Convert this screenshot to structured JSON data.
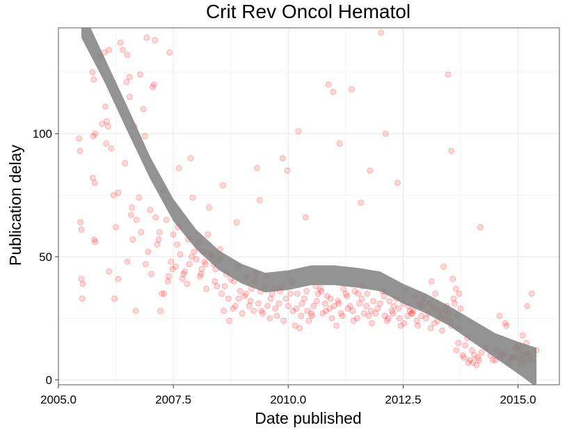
{
  "chart_data": {
    "type": "scatter",
    "title": "Crit Rev Oncol Hematol",
    "xlabel": "Date published",
    "ylabel": "Publication delay",
    "xlim": [
      2005.0,
      2015.9
    ],
    "ylim": [
      -2,
      143
    ],
    "x_ticks": [
      2005.0,
      2007.5,
      2010.0,
      2012.5,
      2015.0
    ],
    "x_tick_labels": [
      "2005.0",
      "2007.5",
      "2010.0",
      "2012.5",
      "2015.0"
    ],
    "y_ticks": [
      0,
      50,
      100
    ],
    "y_tick_labels": [
      "0",
      "50",
      "100"
    ],
    "grid": true,
    "point_color": "#ff0000",
    "smooth_color": "#808080",
    "smooth_curve": {
      "x": [
        2005.5,
        2006.0,
        2006.5,
        2007.0,
        2007.5,
        2008.0,
        2008.5,
        2009.0,
        2009.5,
        2010.0,
        2010.5,
        2011.0,
        2011.5,
        2012.0,
        2012.5,
        2013.0,
        2013.5,
        2014.0,
        2014.5,
        2015.0,
        2015.4
      ],
      "y": [
        145,
        126,
        106,
        86,
        69,
        57,
        48.5,
        43,
        39.5,
        40.5,
        42.5,
        42.5,
        41.5,
        40,
        35,
        31,
        26,
        20,
        14,
        9,
        5
      ],
      "band_halfwidth": [
        6,
        5,
        5,
        4.5,
        4.5,
        4,
        4,
        4,
        4,
        4,
        4,
        4,
        4,
        4,
        4,
        4,
        4,
        4.5,
        5,
        6.5,
        8
      ]
    },
    "points": {
      "x": [
        2005.45,
        2005.48,
        2005.5,
        2005.52,
        2005.47,
        2005.5,
        2005.53,
        2005.75,
        2005.78,
        2005.8,
        2005.74,
        2005.77,
        2005.79,
        2005.76,
        2005.8,
        2006.0,
        2006.05,
        2006.1,
        2006.02,
        2006.08,
        2006.1,
        2006.04,
        2006.2,
        2006.25,
        2006.3,
        2006.22,
        2006.3,
        2006.45,
        2006.5,
        2006.55,
        2006.6,
        2006.5,
        2006.55,
        2006.62,
        2006.48,
        2006.58,
        2006.7,
        2006.75,
        2006.8,
        2006.85,
        2006.9,
        2006.95,
        2006.88,
        2006.78,
        2007.0,
        2007.05,
        2007.1,
        2007.15,
        2007.2,
        2007.25,
        2007.02,
        2007.12,
        2007.18,
        2007.22,
        2007.3,
        2007.35,
        2007.4,
        2007.45,
        2007.5,
        2007.55,
        2007.6,
        2007.65,
        2007.38,
        2007.48,
        2007.58,
        2007.7,
        2007.75,
        2007.8,
        2007.85,
        2007.9,
        2007.95,
        2007.72,
        2007.82,
        2007.92,
        2008.0,
        2008.05,
        2008.1,
        2008.15,
        2008.2,
        2008.25,
        2008.3,
        2008.08,
        2008.18,
        2008.12,
        2008.22,
        2008.35,
        2008.4,
        2008.45,
        2008.5,
        2008.55,
        2008.6,
        2008.65,
        2008.42,
        2008.52,
        2008.62,
        2008.7,
        2008.75,
        2008.8,
        2008.85,
        2008.9,
        2008.95,
        2008.72,
        2008.82,
        2008.92,
        2009.0,
        2009.05,
        2009.1,
        2009.15,
        2009.2,
        2009.25,
        2009.3,
        2009.08,
        2009.18,
        2009.28,
        2009.35,
        2009.4,
        2009.45,
        2009.5,
        2009.55,
        2009.6,
        2009.65,
        2009.42,
        2009.52,
        2009.62,
        2009.7,
        2009.75,
        2009.8,
        2009.85,
        2009.9,
        2009.95,
        2009.72,
        2009.82,
        2010.0,
        2010.05,
        2010.1,
        2010.15,
        2010.2,
        2010.25,
        2010.3,
        2010.08,
        2010.18,
        2010.28,
        2010.35,
        2010.4,
        2010.45,
        2010.5,
        2010.55,
        2010.6,
        2010.65,
        2010.42,
        2010.52,
        2010.62,
        2010.7,
        2010.75,
        2010.8,
        2010.85,
        2010.9,
        2010.95,
        2010.72,
        2010.82,
        2010.92,
        2011.0,
        2011.05,
        2011.1,
        2011.15,
        2011.2,
        2011.25,
        2011.3,
        2011.08,
        2011.18,
        2011.28,
        2011.35,
        2011.4,
        2011.45,
        2011.5,
        2011.55,
        2011.6,
        2011.65,
        2011.42,
        2011.52,
        2011.62,
        2011.7,
        2011.75,
        2011.8,
        2011.85,
        2011.9,
        2011.95,
        2011.72,
        2011.82,
        2012.0,
        2012.05,
        2012.1,
        2012.15,
        2012.2,
        2012.25,
        2012.3,
        2012.08,
        2012.18,
        2012.28,
        2012.35,
        2012.4,
        2012.45,
        2012.5,
        2012.55,
        2012.6,
        2012.65,
        2012.42,
        2012.52,
        2012.62,
        2012.7,
        2012.75,
        2012.8,
        2012.85,
        2012.9,
        2012.95,
        2012.72,
        2012.82,
        2012.92,
        2013.0,
        2013.05,
        2013.1,
        2013.15,
        2013.2,
        2013.25,
        2013.3,
        2013.08,
        2013.18,
        2013.28,
        2013.35,
        2013.4,
        2013.45,
        2013.5,
        2013.55,
        2013.6,
        2013.65,
        2013.42,
        2013.52,
        2013.62,
        2013.7,
        2013.72,
        2013.75,
        2013.68,
        2013.7,
        2013.66,
        2013.8,
        2013.85,
        2013.9,
        2013.95,
        2013.82,
        2013.92,
        2014.0,
        2014.05,
        2014.1,
        2014.15,
        2014.2,
        2014.02,
        2014.12,
        2014.3,
        2014.4,
        2014.5,
        2014.6,
        2014.7,
        2014.45,
        2014.55,
        2014.65,
        2014.8,
        2014.9,
        2015.0,
        2015.05,
        2015.1,
        2015.15,
        2015.2,
        2014.85,
        2014.95,
        2015.08,
        2015.18,
        2015.25,
        2015.3,
        2015.4,
        2015.0,
        2015.1,
        2014.75,
        2014.6,
        2015.2,
        2015.3,
        2005.9,
        2006.15,
        2006.4,
        2006.65,
        2006.68,
        2007.28,
        2007.62,
        2008.28,
        2008.58,
        2009.32,
        2009.98,
        2010.22,
        2010.88,
        2011.38,
        2011.78,
        2012.12,
        2012.38,
        2013.48,
        2013.55,
        2014.18,
        2005.95,
        2006.35,
        2006.92,
        2007.08,
        2007.42,
        2007.88,
        2008.38,
        2008.88,
        2009.38,
        2009.88,
        2010.38,
        2010.98,
        2011.12,
        2011.58,
        2012.02,
        2012.68,
        2013.12,
        2013.38,
        2013.58,
        2014.72
      ],
      "y": [
        98,
        64,
        41,
        33,
        93,
        61,
        39,
        82,
        57,
        100,
        125,
        122,
        80,
        99,
        56,
        133,
        105,
        44,
        111,
        103,
        134,
        96,
        75,
        62,
        41,
        33,
        76,
        88,
        132,
        115,
        70,
        48,
        123,
        57,
        121,
        67,
        65,
        74,
        60,
        110,
        47,
        52,
        99,
        124,
        69,
        119,
        138,
        55,
        60,
        35,
        43,
        66,
        57,
        28,
        35,
        65,
        42,
        48,
        59,
        46,
        62,
        51,
        40,
        45,
        55,
        41,
        44,
        39,
        47,
        50,
        52,
        43,
        57,
        74,
        49,
        56,
        43,
        52,
        47,
        59,
        51,
        42,
        48,
        45,
        37,
        50,
        40,
        38,
        49,
        35,
        28,
        43,
        45,
        53,
        38,
        33,
        41,
        29,
        30,
        46,
        36,
        24,
        40,
        33,
        27,
        34,
        42,
        30,
        37,
        28,
        43,
        35,
        32,
        40,
        31,
        36,
        27,
        38,
        30,
        25,
        35,
        28,
        42,
        33,
        37,
        26,
        31,
        38,
        24,
        33,
        29,
        36,
        30,
        35,
        28,
        22,
        35,
        21,
        31,
        40,
        29,
        26,
        33,
        36,
        24,
        27,
        30,
        38,
        35,
        28,
        26,
        32,
        37,
        27,
        31,
        34,
        29,
        25,
        36,
        28,
        33,
        30,
        22,
        31,
        27,
        37,
        35,
        29,
        32,
        26,
        34,
        30,
        28,
        36,
        25,
        31,
        33,
        27,
        24,
        35,
        38,
        30,
        26,
        28,
        32,
        27,
        29,
        35,
        23,
        31,
        36,
        26,
        24,
        32,
        28,
        30,
        34,
        25,
        27,
        33,
        29,
        22,
        31,
        36,
        26,
        28,
        25,
        23,
        30,
        27,
        34,
        24,
        31,
        26,
        33,
        28,
        22,
        30,
        25,
        27,
        21,
        29,
        35,
        24,
        26,
        31,
        23,
        28,
        20,
        25,
        30,
        27,
        22,
        33,
        37,
        28,
        24,
        31,
        21,
        35,
        29,
        26,
        15,
        12,
        10,
        14,
        17,
        8,
        9,
        7,
        12,
        10,
        6,
        8,
        11,
        7,
        9,
        13,
        10,
        8,
        9,
        11,
        8,
        12,
        10,
        7,
        9,
        14,
        12,
        10,
        8,
        11,
        9,
        13,
        7,
        15,
        10,
        8,
        12,
        9,
        18,
        22,
        26,
        30,
        35,
        131,
        94,
        134,
        103,
        28,
        77,
        86,
        70,
        79,
        86,
        85,
        101,
        120,
        118,
        85,
        100,
        80,
        124,
        93,
        62,
        104,
        137,
        139,
        120,
        133,
        90,
        47,
        64,
        73,
        90,
        66,
        117,
        96,
        72,
        141,
        27,
        40,
        46,
        41,
        23
      ]
    }
  }
}
